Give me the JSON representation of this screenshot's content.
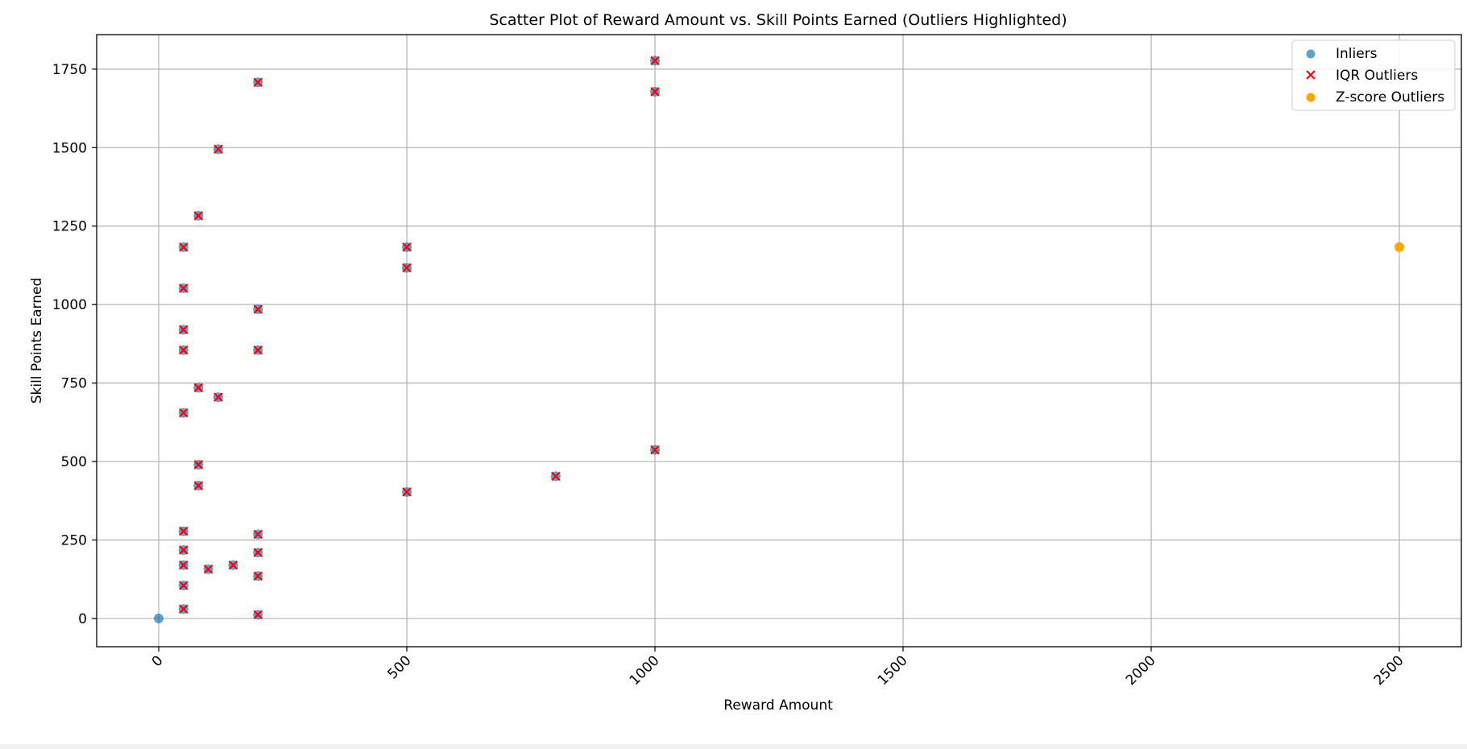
{
  "chart_data": {
    "type": "scatter",
    "title": "Scatter Plot of Reward Amount vs. Skill Points Earned (Outliers Highlighted)",
    "xlabel": "Reward Amount",
    "ylabel": "Skill Points Earned",
    "xlim": [
      -125,
      2625
    ],
    "ylim": [
      -90,
      1860
    ],
    "xticks": [
      0,
      500,
      1000,
      1500,
      2000,
      2500
    ],
    "yticks": [
      0,
      250,
      500,
      750,
      1000,
      1250,
      1500,
      1750
    ],
    "grid": true,
    "legend_position": "top-right",
    "series": [
      {
        "name": "Inliers",
        "marker": "circle",
        "color": "#1f77b4",
        "points": [
          [
            0,
            0
          ],
          [
            50,
            30
          ],
          [
            50,
            105
          ],
          [
            50,
            170
          ],
          [
            50,
            218
          ],
          [
            50,
            278
          ],
          [
            50,
            655
          ],
          [
            50,
            855
          ],
          [
            50,
            920
          ],
          [
            50,
            1052
          ],
          [
            50,
            1183
          ],
          [
            80,
            423
          ],
          [
            80,
            490
          ],
          [
            80,
            735
          ],
          [
            80,
            1283
          ],
          [
            100,
            157
          ],
          [
            120,
            705
          ],
          [
            120,
            1495
          ],
          [
            150,
            170
          ],
          [
            200,
            12
          ],
          [
            200,
            135
          ],
          [
            200,
            210
          ],
          [
            200,
            268
          ],
          [
            200,
            855
          ],
          [
            200,
            985
          ],
          [
            200,
            1708
          ],
          [
            500,
            403
          ],
          [
            500,
            1117
          ],
          [
            500,
            1183
          ],
          [
            800,
            453
          ],
          [
            1000,
            537
          ],
          [
            1000,
            1678
          ],
          [
            1000,
            1777
          ]
        ]
      },
      {
        "name": "IQR Outliers",
        "marker": "x",
        "color": "#ff0000",
        "points": [
          [
            50,
            30
          ],
          [
            50,
            105
          ],
          [
            50,
            170
          ],
          [
            50,
            218
          ],
          [
            50,
            278
          ],
          [
            50,
            655
          ],
          [
            50,
            855
          ],
          [
            50,
            920
          ],
          [
            50,
            1052
          ],
          [
            50,
            1183
          ],
          [
            80,
            423
          ],
          [
            80,
            490
          ],
          [
            80,
            735
          ],
          [
            80,
            1283
          ],
          [
            100,
            157
          ],
          [
            120,
            705
          ],
          [
            120,
            1495
          ],
          [
            150,
            170
          ],
          [
            200,
            12
          ],
          [
            200,
            135
          ],
          [
            200,
            210
          ],
          [
            200,
            268
          ],
          [
            200,
            855
          ],
          [
            200,
            985
          ],
          [
            200,
            1708
          ],
          [
            500,
            403
          ],
          [
            500,
            1117
          ],
          [
            500,
            1183
          ],
          [
            800,
            453
          ],
          [
            1000,
            537
          ],
          [
            1000,
            1678
          ],
          [
            1000,
            1777
          ]
        ]
      },
      {
        "name": "Z-score Outliers",
        "marker": "circle",
        "color": "#ffa500",
        "points": [
          [
            2500,
            1183
          ]
        ]
      }
    ]
  }
}
